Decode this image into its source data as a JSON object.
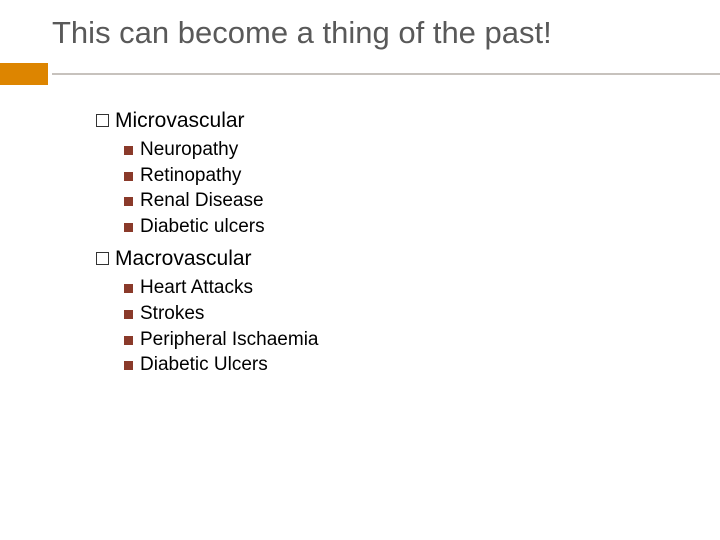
{
  "title": "This can become a thing of the past!",
  "accent_color": "#dd8500",
  "divider_color": "#c7c2bd",
  "bullet_filled_color": "#8a3a2a",
  "title_color": "#595959",
  "text_color": "#000000",
  "title_fontsize": 31,
  "group_fontsize": 21,
  "item_fontsize": 19,
  "groups": [
    {
      "label": "Microvascular",
      "items": [
        "Neuropathy",
        "Retinopathy",
        "Renal Disease",
        "Diabetic ulcers"
      ]
    },
    {
      "label": "Macrovascular",
      "items": [
        "Heart Attacks",
        "Strokes",
        "Peripheral Ischaemia",
        "Diabetic Ulcers"
      ]
    }
  ]
}
